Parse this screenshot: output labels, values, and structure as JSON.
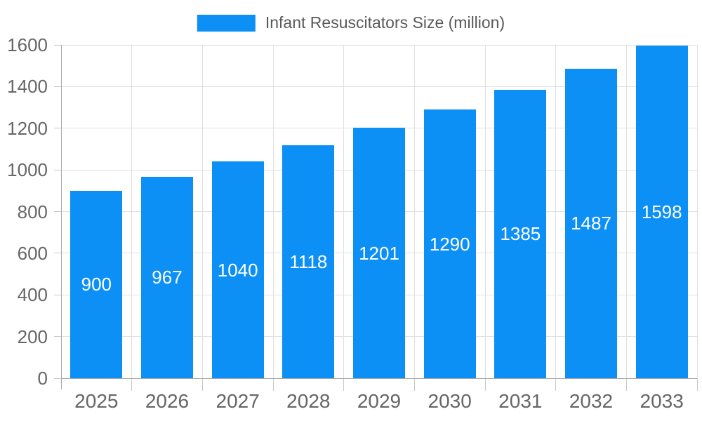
{
  "legend": {
    "label": "Infant Resuscitators Size (million)",
    "swatch_color": "#0d90f5"
  },
  "chart_data": {
    "type": "bar",
    "title": "Infant Resuscitators Size (million)",
    "categories": [
      "2025",
      "2026",
      "2027",
      "2028",
      "2029",
      "2030",
      "2031",
      "2032",
      "2033"
    ],
    "values": [
      900,
      967,
      1040,
      1118,
      1201,
      1290,
      1385,
      1487,
      1598
    ],
    "series": [
      {
        "name": "Infant Resuscitators Size (million)",
        "values": [
          900,
          967,
          1040,
          1118,
          1201,
          1290,
          1385,
          1487,
          1598
        ]
      }
    ],
    "xlabel": "",
    "ylabel": "",
    "ylim": [
      0,
      1600
    ],
    "yticks": [
      0,
      200,
      400,
      600,
      800,
      1000,
      1200,
      1400,
      1600
    ],
    "grid": "both",
    "legend_position": "top-center",
    "bar_color": "#0d90f5",
    "value_label_color": "#ffffff",
    "value_label_position": "inside-center"
  },
  "colors": {
    "bar": "#0d90f5",
    "grid": "#e0e0e0",
    "axis": "#a8a8a8",
    "tick": "#c9c9c9",
    "axis_label": "#666666",
    "legend_text": "#58595b",
    "background": "#ffffff"
  }
}
